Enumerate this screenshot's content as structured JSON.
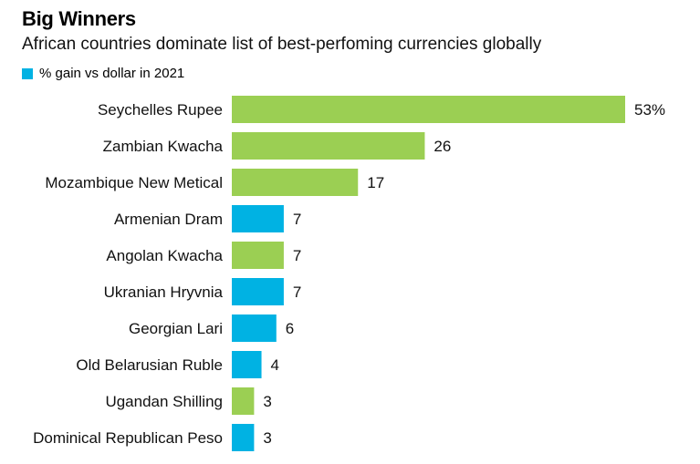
{
  "header": {
    "title": "Big Winners",
    "subtitle": "African countries dominate list of best-perfoming currencies globally"
  },
  "legend": {
    "label": "% gain vs dollar in 2021",
    "color": "#00b2e3"
  },
  "colors": {
    "african": "#9bcf53",
    "other": "#00b2e3"
  },
  "chart_data": {
    "type": "bar",
    "orientation": "horizontal",
    "categories": [
      "Seychelles Rupee",
      "Zambian Kwacha",
      "Mozambique New Metical",
      "Armenian Dram",
      "Angolan Kwacha",
      "Ukranian Hryvnia",
      "Georgian Lari",
      "Old Belarusian Ruble",
      "Ugandan Shilling",
      "Dominical Republican Peso"
    ],
    "values": [
      53,
      26,
      17,
      7,
      7,
      7,
      6,
      4,
      3,
      3
    ],
    "value_labels": [
      "53%",
      "26",
      "17",
      "7",
      "7",
      "7",
      "6",
      "4",
      "3",
      "3"
    ],
    "bar_colors": [
      "#9bcf53",
      "#9bcf53",
      "#9bcf53",
      "#00b2e3",
      "#9bcf53",
      "#00b2e3",
      "#00b2e3",
      "#00b2e3",
      "#9bcf53",
      "#00b2e3"
    ],
    "series": [
      {
        "name": "% gain vs dollar in 2021",
        "values": [
          53,
          26,
          17,
          7,
          7,
          7,
          6,
          4,
          3,
          3
        ]
      }
    ],
    "xlim": [
      0,
      53
    ],
    "grid": false,
    "legend_position": "top-left"
  }
}
